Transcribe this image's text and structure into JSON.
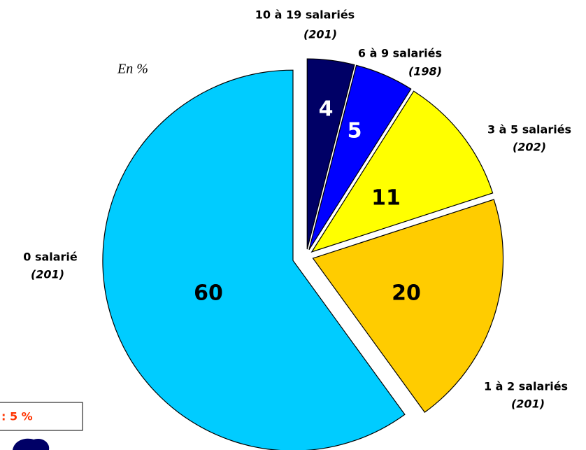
{
  "chart_data": {
    "type": "pie",
    "annotation": "En %",
    "note": ": 5 %",
    "categories": [
      "10 à 19 salariés",
      "6 à 9 salariés",
      "3 à 5 salariés",
      "1 à 2 salariés",
      "0 salarié"
    ],
    "counts": [
      "(201)",
      "(198)",
      "(202)",
      "(201)",
      "(201)"
    ],
    "values": [
      4,
      5,
      11,
      20,
      60
    ],
    "colors": [
      "#000066",
      "#0000ff",
      "#ffff00",
      "#ffcc00",
      "#00ccff"
    ],
    "label_colors": [
      "#ffffff",
      "#ffffff",
      "#000000",
      "#000000",
      "#000000"
    ]
  }
}
